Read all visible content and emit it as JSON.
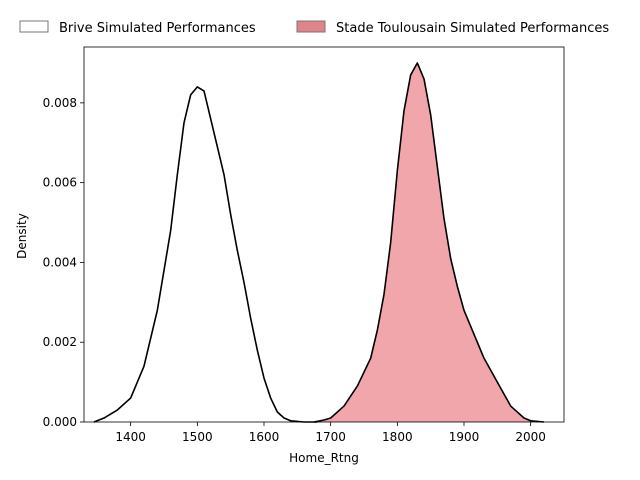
{
  "chart_data": {
    "type": "area",
    "title": "",
    "xlabel": "Home_Rtng",
    "ylabel": "Density",
    "xlim": [
      1330,
      2050
    ],
    "ylim": [
      0,
      0.0094
    ],
    "xticks": [
      1400,
      1500,
      1600,
      1700,
      1800,
      1900,
      2000
    ],
    "yticks": [
      0.0,
      0.002,
      0.004,
      0.006,
      0.008
    ],
    "ytick_labels": [
      "0.000",
      "0.002",
      "0.004",
      "0.006",
      "0.008"
    ],
    "grid": false,
    "legend": {
      "placement": "top",
      "columns": 2
    },
    "series": [
      {
        "name": "Brive Simulated Performances",
        "fill": "none",
        "line_color": "#000000",
        "x": [
          1345,
          1360,
          1380,
          1400,
          1420,
          1440,
          1460,
          1470,
          1480,
          1490,
          1500,
          1510,
          1520,
          1530,
          1540,
          1550,
          1560,
          1570,
          1580,
          1590,
          1600,
          1610,
          1620,
          1630,
          1640,
          1660,
          1680
        ],
        "y": [
          0.0,
          0.0001,
          0.0003,
          0.0006,
          0.0014,
          0.0028,
          0.0048,
          0.0062,
          0.0075,
          0.0082,
          0.0084,
          0.0083,
          0.0076,
          0.0069,
          0.0062,
          0.0052,
          0.0043,
          0.0035,
          0.0026,
          0.0018,
          0.0011,
          0.0006,
          0.00025,
          0.0001,
          3e-05,
          0.0,
          0.0
        ]
      },
      {
        "name": "Stade Toulousain Simulated Performances",
        "fill": "#f0a6ab",
        "legend_fill": "#e0838a",
        "line_color": "#000000",
        "x": [
          1675,
          1690,
          1700,
          1720,
          1740,
          1760,
          1770,
          1780,
          1790,
          1800,
          1810,
          1820,
          1830,
          1840,
          1850,
          1860,
          1870,
          1880,
          1890,
          1900,
          1910,
          1930,
          1950,
          1970,
          1990,
          2000,
          2020
        ],
        "y": [
          0.0,
          5e-05,
          0.0001,
          0.0004,
          0.0009,
          0.0016,
          0.0023,
          0.0032,
          0.0045,
          0.0063,
          0.0078,
          0.0087,
          0.009,
          0.0086,
          0.0077,
          0.0064,
          0.0051,
          0.0041,
          0.0034,
          0.0028,
          0.0024,
          0.0016,
          0.001,
          0.0004,
          0.0001,
          3e-05,
          0.0
        ]
      }
    ]
  }
}
